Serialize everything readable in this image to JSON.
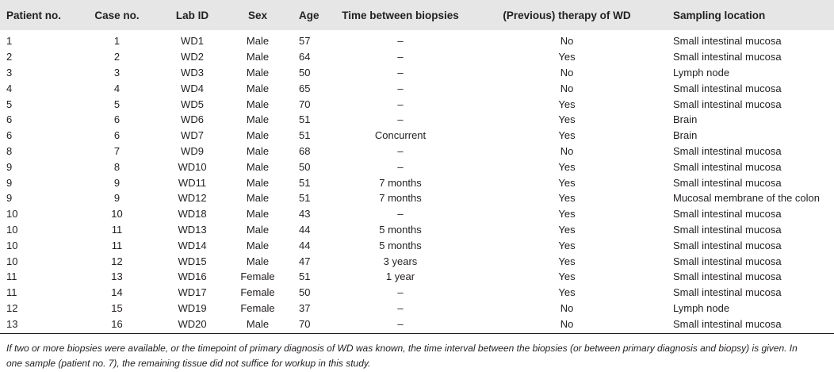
{
  "table": {
    "header": [
      "Patient no.",
      "Case no.",
      "Lab ID",
      "Sex",
      "Age",
      "Time between biopsies",
      "(Previous) therapy of WD",
      "Sampling location"
    ],
    "rows": [
      [
        1,
        1,
        "WD1",
        "Male",
        57,
        "–",
        "No",
        "Small intestinal mucosa"
      ],
      [
        2,
        2,
        "WD2",
        "Male",
        64,
        "–",
        "Yes",
        "Small intestinal mucosa"
      ],
      [
        3,
        3,
        "WD3",
        "Male",
        50,
        "–",
        "No",
        "Lymph node"
      ],
      [
        4,
        4,
        "WD4",
        "Male",
        65,
        "–",
        "No",
        "Small intestinal mucosa"
      ],
      [
        5,
        5,
        "WD5",
        "Male",
        70,
        "–",
        "Yes",
        "Small intestinal mucosa"
      ],
      [
        6,
        6,
        "WD6",
        "Male",
        51,
        "–",
        "Yes",
        "Brain"
      ],
      [
        6,
        6,
        "WD7",
        "Male",
        51,
        "Concurrent",
        "Yes",
        "Brain"
      ],
      [
        8,
        7,
        "WD9",
        "Male",
        68,
        "–",
        "No",
        "Small intestinal mucosa"
      ],
      [
        9,
        8,
        "WD10",
        "Male",
        50,
        "–",
        "Yes",
        "Small intestinal mucosa"
      ],
      [
        9,
        9,
        "WD11",
        "Male",
        51,
        "7 months",
        "Yes",
        "Small intestinal mucosa"
      ],
      [
        9,
        9,
        "WD12",
        "Male",
        51,
        "7 months",
        "Yes",
        "Mucosal membrane of the colon"
      ],
      [
        10,
        10,
        "WD18",
        "Male",
        43,
        "–",
        "Yes",
        "Small intestinal mucosa"
      ],
      [
        10,
        11,
        "WD13",
        "Male",
        44,
        "5 months",
        "Yes",
        "Small intestinal mucosa"
      ],
      [
        10,
        11,
        "WD14",
        "Male",
        44,
        "5 months",
        "Yes",
        "Small intestinal mucosa"
      ],
      [
        10,
        12,
        "WD15",
        "Male",
        47,
        "3 years",
        "Yes",
        "Small intestinal mucosa"
      ],
      [
        11,
        13,
        "WD16",
        "Female",
        51,
        "1 year",
        "Yes",
        "Small intestinal mucosa"
      ],
      [
        11,
        14,
        "WD17",
        "Female",
        50,
        "–",
        "Yes",
        "Small intestinal mucosa"
      ],
      [
        12,
        15,
        "WD19",
        "Female",
        37,
        "–",
        "No",
        "Lymph node"
      ],
      [
        13,
        16,
        "WD20",
        "Male",
        70,
        "–",
        "No",
        "Small intestinal mucosa"
      ]
    ],
    "footnote": "If two or more biopsies were available, or the timepoint of primary diagnosis of WD was known, the time interval between the biopsies (or between primary diagnosis and biopsy) is given. In one sample (patient no. 7), the remaining tissue did not suffice for workup in this study."
  }
}
